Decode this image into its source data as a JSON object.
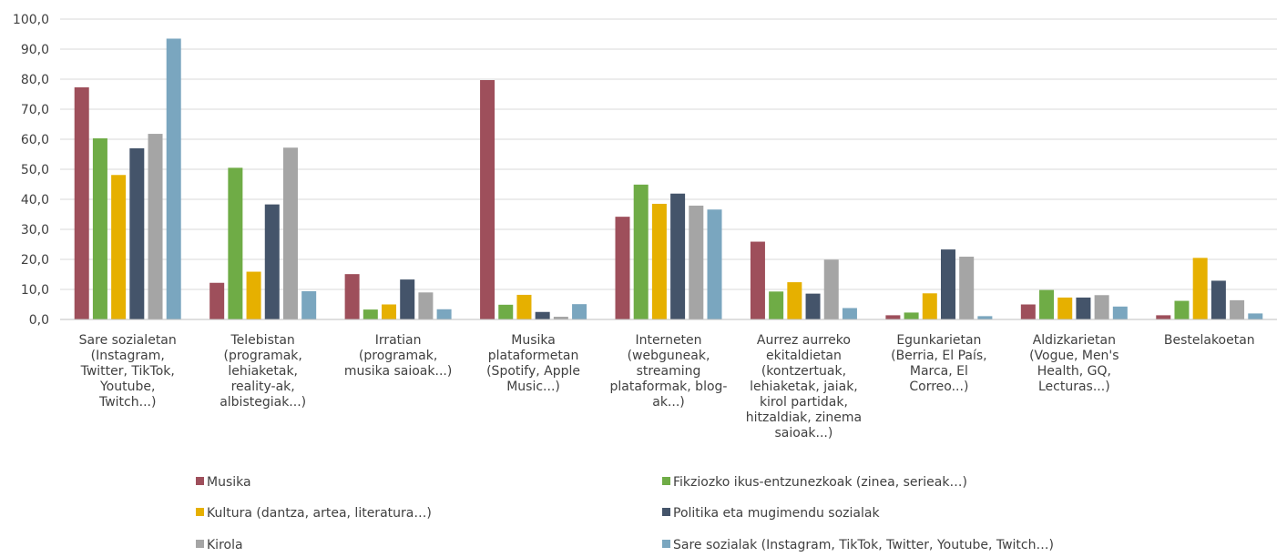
{
  "chart_data": {
    "type": "bar",
    "title": "",
    "xlabel": "",
    "ylabel": "",
    "ylim": [
      0,
      100
    ],
    "ytick_step": 10,
    "ytick_labels": [
      "0,0",
      "10,0",
      "20,0",
      "30,0",
      "40,0",
      "50,0",
      "60,0",
      "70,0",
      "80,0",
      "90,0",
      "100,0"
    ],
    "grid": true,
    "legend_position": "bottom",
    "categories": [
      [
        "Sare sozialetan",
        "(Instagram,",
        "Twitter, TikTok,",
        "Youtube,",
        "Twitch...)"
      ],
      [
        "Telebistan",
        "(programak,",
        "lehiaketak,",
        "reality-ak,",
        "albistegiak...)"
      ],
      [
        "Irratian",
        "(programak,",
        "musika saioak...)"
      ],
      [
        "Musika",
        "plataformetan",
        "(Spotify, Apple",
        "Music...)"
      ],
      [
        "Interneten",
        "(webguneak,",
        "streaming",
        "plataformak, blog-",
        "ak...)"
      ],
      [
        "Aurrez aurreko",
        "ekitaldietan",
        "(kontzertuak,",
        "lehiaketak, jaiak,",
        "kirol partidak,",
        "hitzaldiak, zinema",
        "saioak...)"
      ],
      [
        "Egunkarietan",
        "(Berria, El País,",
        "Marca, El",
        "Correo...)"
      ],
      [
        "Aldizkarietan",
        "(Vogue, Men's",
        "Health, GQ,",
        "Lecturas...)"
      ],
      [
        "Bestelakoetan"
      ]
    ],
    "series": [
      {
        "name": "Musika",
        "color": "#9e4f5b",
        "values": [
          77.3,
          12.2,
          15.1,
          79.7,
          34.2,
          25.9,
          1.4,
          5.0,
          1.4
        ]
      },
      {
        "name": "Fikziozko ikus-entzunezkoak (zinea, serieak…)",
        "color": "#6fac46",
        "values": [
          60.3,
          50.5,
          3.3,
          4.9,
          44.9,
          9.3,
          2.3,
          9.8,
          6.2
        ]
      },
      {
        "name": "Kultura (dantza, artea, literatura…)",
        "color": "#e6b000",
        "values": [
          48.1,
          15.9,
          5.0,
          8.2,
          38.5,
          12.4,
          8.7,
          7.3,
          20.5
        ]
      },
      {
        "name": "Politika eta mugimendu sozialak",
        "color": "#44546a",
        "values": [
          57.0,
          38.3,
          13.3,
          2.5,
          41.9,
          8.6,
          23.3,
          7.3,
          12.9
        ]
      },
      {
        "name": "Kirola",
        "color": "#a5a5a5",
        "values": [
          61.8,
          57.2,
          9.0,
          0.9,
          37.9,
          19.9,
          20.9,
          8.1,
          6.4
        ]
      },
      {
        "name": "Sare sozialak (Instagram, TikTok, Twitter, Youtube, Twitch…)",
        "color": "#7aa6bf",
        "values": [
          93.5,
          9.4,
          3.4,
          5.1,
          36.6,
          3.8,
          1.1,
          4.3,
          2.0
        ]
      }
    ]
  }
}
